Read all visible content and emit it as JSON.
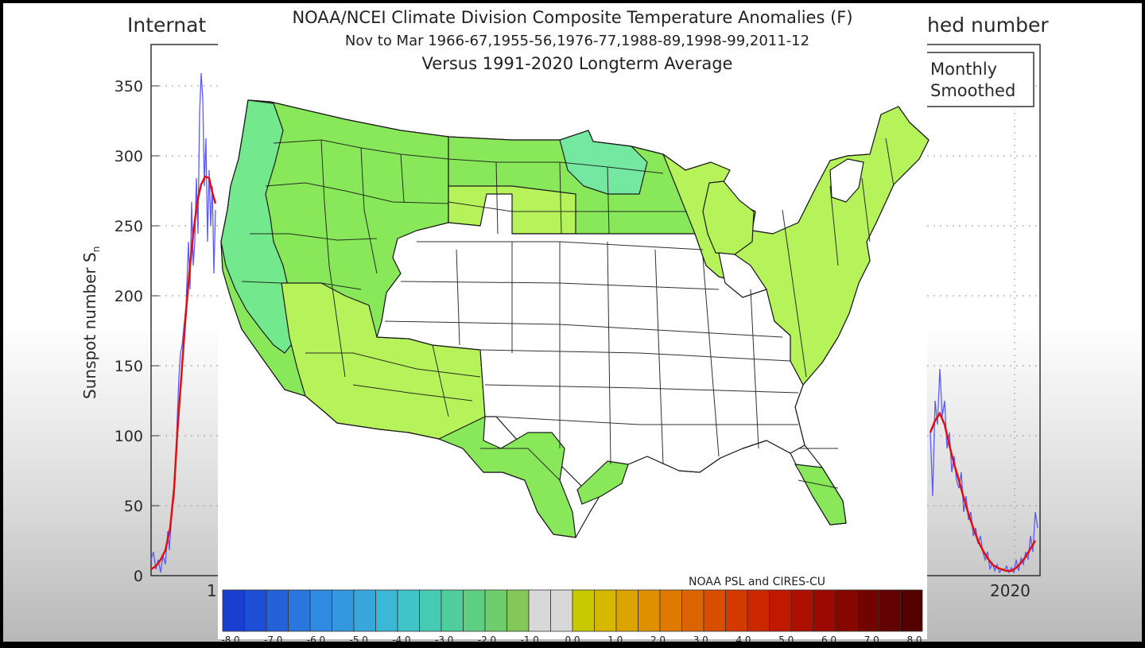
{
  "background_chart": {
    "title_left": "Internat",
    "title_right": "hed number",
    "ylabel": "Sunspot number S",
    "ylabel_sub": "n",
    "yticks": [
      "0",
      "50",
      "100",
      "150",
      "200",
      "250",
      "300",
      "350"
    ],
    "xtick_left": "1",
    "xtick_right": "2020",
    "legend": [
      "Monthly",
      "Smoothed"
    ],
    "colors": {
      "monthly": "#5a5aff",
      "smoothed": "#e01010"
    }
  },
  "map": {
    "title_line1": "NOAA/NCEI Climate Division Composite Temperature Anomalies (F)",
    "title_line2": "Nov to Mar  1966-67,1955-56,1976-77,1988-89,1998-99,2011-12",
    "title_line3": "Versus 1991-2020 Longterm Average",
    "credit": "NOAA PSL and CIRES-CU",
    "region_colors": {
      "minus1_5": "#88e85a",
      "minus1": "#b6f35a",
      "minus2": "#74e88c",
      "minus2_5": "#5fe3a8",
      "zero": "#ffffff"
    }
  },
  "colorbar": {
    "labels": [
      "-8.0",
      "-7.0",
      "-6.0",
      "-5.0",
      "-4.0",
      "-3.0",
      "-2.0",
      "-1.0",
      "0.0",
      "1.0",
      "2.0",
      "3.0",
      "4.0",
      "5.0",
      "6.0",
      "7.0",
      "8.0"
    ],
    "colors": [
      "#1a3fd0",
      "#1e4fd6",
      "#2462da",
      "#2a76de",
      "#2f8ae0",
      "#3498df",
      "#38a8dc",
      "#3cb7d6",
      "#40c4c8",
      "#46cbb2",
      "#4ece9a",
      "#5ccf82",
      "#6ecd6c",
      "#84c85a",
      "#d8d8d8",
      "#d8d8d8",
      "#c9c900",
      "#d6b800",
      "#dca400",
      "#de9000",
      "#de7a00",
      "#dc6400",
      "#d84e00",
      "#d43a00",
      "#cc2800",
      "#bf1a00",
      "#ae1000",
      "#9a0a00",
      "#860600",
      "#720400",
      "#620200",
      "#520000"
    ]
  }
}
